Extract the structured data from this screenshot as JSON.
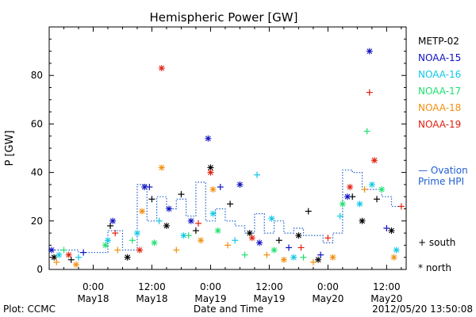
{
  "chart_data": {
    "type": "scatter",
    "title": "Hemispheric Power [GW]",
    "ylabel": "P [GW]",
    "xlabel": "Date and Time",
    "ylim": [
      0,
      100
    ],
    "xlim": [
      "2012-05-17 15:00",
      "2012-05-20 16:00"
    ],
    "yticks": [
      0,
      20,
      40,
      60,
      80
    ],
    "xticks": [
      {
        "t": "2012-05-18 00:00",
        "line1": "0:00",
        "line2": "May18"
      },
      {
        "t": "2012-05-18 12:00",
        "line1": "12:00",
        "line2": "May18"
      },
      {
        "t": "2012-05-19 00:00",
        "line1": "0:00",
        "line2": "May19"
      },
      {
        "t": "2012-05-19 12:00",
        "line1": "12:00",
        "line2": "May19"
      },
      {
        "t": "2012-05-20 00:00",
        "line1": "0:00",
        "line2": "May20"
      },
      {
        "t": "2012-05-20 12:00",
        "line1": "12:00",
        "line2": "May20"
      }
    ],
    "grid": false,
    "legend_position": "right",
    "footer_left": "Plot: CCMC",
    "footer_right": "2012/05/20 13:50:08",
    "marker_legend": [
      {
        "symbol": "+",
        "label": "south"
      },
      {
        "symbol": "*",
        "label": "north"
      }
    ],
    "ovation": {
      "name": "Ovation Prime HPI",
      "label_line1": "— Ovation",
      "label_line2": "Prime HPI",
      "color": "#1f5fd0",
      "points": [
        [
          "2012-05-17 15:00",
          8
        ],
        [
          "2012-05-17 18:00",
          8
        ],
        [
          "2012-05-17 21:00",
          7
        ],
        [
          "2012-05-18 00:00",
          7
        ],
        [
          "2012-05-18 03:00",
          16
        ],
        [
          "2012-05-18 06:00",
          8
        ],
        [
          "2012-05-18 09:00",
          35
        ],
        [
          "2012-05-18 11:00",
          20
        ],
        [
          "2012-05-18 13:00",
          30
        ],
        [
          "2012-05-18 15:00",
          25
        ],
        [
          "2012-05-18 17:00",
          29
        ],
        [
          "2012-05-18 19:00",
          22
        ],
        [
          "2012-05-18 21:00",
          36
        ],
        [
          "2012-05-18 23:00",
          20
        ],
        [
          "2012-05-19 01:00",
          25
        ],
        [
          "2012-05-19 03:00",
          20
        ],
        [
          "2012-05-19 05:00",
          18
        ],
        [
          "2012-05-19 07:00",
          15
        ],
        [
          "2012-05-19 09:00",
          23
        ],
        [
          "2012-05-19 11:00",
          15
        ],
        [
          "2012-05-19 13:00",
          20
        ],
        [
          "2012-05-19 15:00",
          15
        ],
        [
          "2012-05-19 17:00",
          17
        ],
        [
          "2012-05-19 19:00",
          14
        ],
        [
          "2012-05-19 21:00",
          14
        ],
        [
          "2012-05-19 23:00",
          11
        ],
        [
          "2012-05-20 01:00",
          15
        ],
        [
          "2012-05-20 03:00",
          41
        ],
        [
          "2012-05-20 05:00",
          40
        ],
        [
          "2012-05-20 07:00",
          33
        ],
        [
          "2012-05-20 09:00",
          33
        ],
        [
          "2012-05-20 11:00",
          30
        ],
        [
          "2012-05-20 13:00",
          26
        ],
        [
          "2012-05-20 14:30",
          26
        ]
      ]
    },
    "series": [
      {
        "name": "METP-02",
        "color": "#000000",
        "points": [
          {
            "t": "2012-05-17 16:00",
            "y": 5,
            "m": "*"
          },
          {
            "t": "2012-05-17 19:30",
            "y": 4,
            "m": "+"
          },
          {
            "t": "2012-05-18 03:30",
            "y": 18,
            "m": "+"
          },
          {
            "t": "2012-05-18 07:00",
            "y": 5,
            "m": "*"
          },
          {
            "t": "2012-05-18 12:00",
            "y": 29,
            "m": "+"
          },
          {
            "t": "2012-05-18 15:00",
            "y": 18,
            "m": "*"
          },
          {
            "t": "2012-05-18 18:00",
            "y": 31,
            "m": "+"
          },
          {
            "t": "2012-05-18 21:00",
            "y": 16,
            "m": "+"
          },
          {
            "t": "2012-05-19 00:00",
            "y": 42,
            "m": "*"
          },
          {
            "t": "2012-05-19 04:00",
            "y": 27,
            "m": "+"
          },
          {
            "t": "2012-05-19 08:00",
            "y": 15,
            "m": "*"
          },
          {
            "t": "2012-05-19 14:00",
            "y": 12,
            "m": "+"
          },
          {
            "t": "2012-05-19 18:00",
            "y": 14,
            "m": "*"
          },
          {
            "t": "2012-05-19 20:00",
            "y": 24,
            "m": "+"
          },
          {
            "t": "2012-05-19 22:00",
            "y": 4,
            "m": "*"
          },
          {
            "t": "2012-05-20 05:00",
            "y": 30,
            "m": "+"
          },
          {
            "t": "2012-05-20 07:00",
            "y": 20,
            "m": "*"
          },
          {
            "t": "2012-05-20 10:00",
            "y": 29,
            "m": "+"
          },
          {
            "t": "2012-05-20 13:00",
            "y": 16,
            "m": "*"
          }
        ]
      },
      {
        "name": "NOAA-15",
        "color": "#1010c0",
        "points": [
          {
            "t": "2012-05-17 15:30",
            "y": 8,
            "m": "*"
          },
          {
            "t": "2012-05-17 22:00",
            "y": 7,
            "m": "+"
          },
          {
            "t": "2012-05-18 04:00",
            "y": 20,
            "m": "*"
          },
          {
            "t": "2012-05-18 10:30",
            "y": 34,
            "m": "*"
          },
          {
            "t": "2012-05-18 11:30",
            "y": 34,
            "m": "+"
          },
          {
            "t": "2012-05-18 15:30",
            "y": 25,
            "m": "*"
          },
          {
            "t": "2012-05-18 20:00",
            "y": 20,
            "m": "*"
          },
          {
            "t": "2012-05-18 23:30",
            "y": 54,
            "m": "*"
          },
          {
            "t": "2012-05-19 02:00",
            "y": 34,
            "m": "+"
          },
          {
            "t": "2012-05-19 06:00",
            "y": 35,
            "m": "*"
          },
          {
            "t": "2012-05-19 10:00",
            "y": 11,
            "m": "*"
          },
          {
            "t": "2012-05-19 16:00",
            "y": 9,
            "m": "+"
          },
          {
            "t": "2012-05-19 22:30",
            "y": 6,
            "m": "+"
          },
          {
            "t": "2012-05-20 04:00",
            "y": 30,
            "m": "*"
          },
          {
            "t": "2012-05-20 08:30",
            "y": 90,
            "m": "*"
          },
          {
            "t": "2012-05-20 12:00",
            "y": 17,
            "m": "+"
          }
        ]
      },
      {
        "name": "NOAA-16",
        "color": "#10c8e8",
        "points": [
          {
            "t": "2012-05-17 17:00",
            "y": 6,
            "m": "*"
          },
          {
            "t": "2012-05-17 21:00",
            "y": 5,
            "m": "+"
          },
          {
            "t": "2012-05-18 03:00",
            "y": 12,
            "m": "*"
          },
          {
            "t": "2012-05-18 09:00",
            "y": 15,
            "m": "*"
          },
          {
            "t": "2012-05-18 13:30",
            "y": 20,
            "m": "+"
          },
          {
            "t": "2012-05-18 18:30",
            "y": 14,
            "m": "*"
          },
          {
            "t": "2012-05-19 00:30",
            "y": 23,
            "m": "*"
          },
          {
            "t": "2012-05-19 05:00",
            "y": 12,
            "m": "+"
          },
          {
            "t": "2012-05-19 09:30",
            "y": 39,
            "m": "+"
          },
          {
            "t": "2012-05-19 12:30",
            "y": 21,
            "m": "*"
          },
          {
            "t": "2012-05-19 17:00",
            "y": 5,
            "m": "*"
          },
          {
            "t": "2012-05-20 02:30",
            "y": 22,
            "m": "+"
          },
          {
            "t": "2012-05-20 06:30",
            "y": 27,
            "m": "*"
          },
          {
            "t": "2012-05-20 09:00",
            "y": 35,
            "m": "*"
          },
          {
            "t": "2012-05-20 14:00",
            "y": 8,
            "m": "*"
          }
        ]
      },
      {
        "name": "NOAA-17",
        "color": "#20e070",
        "points": [
          {
            "t": "2012-05-17 18:00",
            "y": 8,
            "m": "+"
          },
          {
            "t": "2012-05-18 02:30",
            "y": 10,
            "m": "*"
          },
          {
            "t": "2012-05-18 08:00",
            "y": 12,
            "m": "+"
          },
          {
            "t": "2012-05-18 12:30",
            "y": 11,
            "m": "*"
          },
          {
            "t": "2012-05-18 19:30",
            "y": 14,
            "m": "+"
          },
          {
            "t": "2012-05-19 01:30",
            "y": 16,
            "m": "*"
          },
          {
            "t": "2012-05-19 07:00",
            "y": 6,
            "m": "+"
          },
          {
            "t": "2012-05-19 13:00",
            "y": 8,
            "m": "*"
          },
          {
            "t": "2012-05-19 19:00",
            "y": 5,
            "m": "+"
          },
          {
            "t": "2012-05-20 03:00",
            "y": 27,
            "m": "*"
          },
          {
            "t": "2012-05-20 08:00",
            "y": 57,
            "m": "+"
          },
          {
            "t": "2012-05-20 11:00",
            "y": 33,
            "m": "*"
          }
        ]
      },
      {
        "name": "NOAA-18",
        "color": "#f09010",
        "points": [
          {
            "t": "2012-05-17 16:30",
            "y": 3,
            "m": "+"
          },
          {
            "t": "2012-05-17 20:30",
            "y": 2,
            "m": "*"
          },
          {
            "t": "2012-05-18 05:00",
            "y": 8,
            "m": "+"
          },
          {
            "t": "2012-05-18 10:00",
            "y": 24,
            "m": "*"
          },
          {
            "t": "2012-05-18 14:00",
            "y": 42,
            "m": "*"
          },
          {
            "t": "2012-05-18 17:00",
            "y": 8,
            "m": "+"
          },
          {
            "t": "2012-05-18 22:00",
            "y": 12,
            "m": "*"
          },
          {
            "t": "2012-05-19 00:30",
            "y": 33,
            "m": "*"
          },
          {
            "t": "2012-05-19 03:30",
            "y": 10,
            "m": "+"
          },
          {
            "t": "2012-05-19 11:30",
            "y": 6,
            "m": "+"
          },
          {
            "t": "2012-05-19 15:00",
            "y": 4,
            "m": "*"
          },
          {
            "t": "2012-05-19 21:00",
            "y": 3,
            "m": "+"
          },
          {
            "t": "2012-05-20 01:00",
            "y": 5,
            "m": "*"
          },
          {
            "t": "2012-05-20 07:30",
            "y": 33,
            "m": "+"
          },
          {
            "t": "2012-05-20 13:30",
            "y": 5,
            "m": "*"
          }
        ]
      },
      {
        "name": "NOAA-19",
        "color": "#e02010",
        "points": [
          {
            "t": "2012-05-17 19:00",
            "y": 6,
            "m": "*"
          },
          {
            "t": "2012-05-18 04:30",
            "y": 15,
            "m": "+"
          },
          {
            "t": "2012-05-18 09:30",
            "y": 8,
            "m": "*"
          },
          {
            "t": "2012-05-18 14:00",
            "y": 83,
            "m": "*"
          },
          {
            "t": "2012-05-18 21:30",
            "y": 19,
            "m": "+"
          },
          {
            "t": "2012-05-19 00:00",
            "y": 40,
            "m": "*"
          },
          {
            "t": "2012-05-19 08:30",
            "y": 13,
            "m": "*"
          },
          {
            "t": "2012-05-19 18:30",
            "y": 9,
            "m": "+"
          },
          {
            "t": "2012-05-20 00:00",
            "y": 13,
            "m": "+"
          },
          {
            "t": "2012-05-20 04:30",
            "y": 34,
            "m": "*"
          },
          {
            "t": "2012-05-20 08:30",
            "y": 73,
            "m": "+"
          },
          {
            "t": "2012-05-20 09:30",
            "y": 45,
            "m": "*"
          },
          {
            "t": "2012-05-20 15:00",
            "y": 26,
            "m": "+"
          }
        ]
      }
    ]
  }
}
